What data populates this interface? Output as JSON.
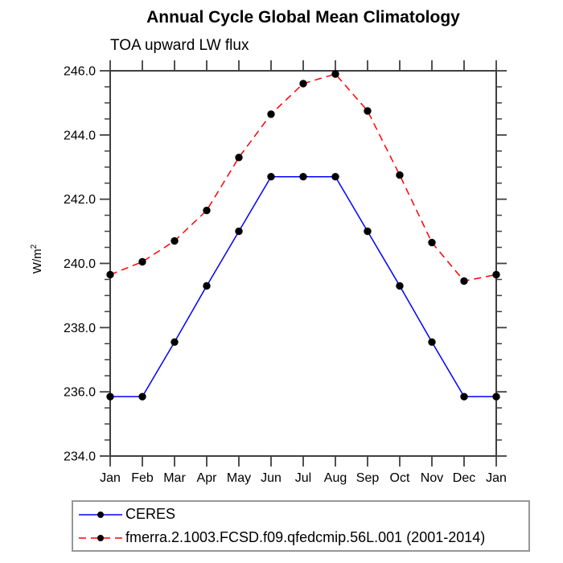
{
  "header": {
    "title": "Annual Cycle Global Mean Climatology",
    "subtitle": "TOA upward LW flux"
  },
  "y_axis": {
    "label_base": "W/m",
    "label_exp": "2"
  },
  "legend": {
    "entries": [
      {
        "label": "CERES",
        "color": "#0000ff",
        "style": "solid",
        "marker_color": "#000000"
      },
      {
        "label": "fmerra.2.1003.FCSD.f09.qfedcmip.56L.001 (2001-2014)",
        "color": "#ff0000",
        "style": "dashed",
        "marker_color": "#000000"
      }
    ]
  },
  "chart_data": {
    "type": "line",
    "title": "Annual Cycle Global Mean Climatology",
    "subtitle": "TOA upward LW flux",
    "ylabel": "W/m²",
    "categories": [
      "Jan",
      "Feb",
      "Mar",
      "Apr",
      "May",
      "Jun",
      "Jul",
      "Aug",
      "Sep",
      "Oct",
      "Nov",
      "Dec",
      "Jan"
    ],
    "series": [
      {
        "name": "CERES",
        "color": "#0000ff",
        "line_style": "solid",
        "marker": "filled-circle",
        "marker_color": "#000000",
        "values": [
          235.85,
          235.85,
          237.55,
          239.3,
          241.0,
          242.7,
          242.7,
          242.7,
          241.0,
          239.3,
          237.55,
          235.85,
          235.85
        ]
      },
      {
        "name": "fmerra.2.1003.FCSD.f09.qfedcmip.56L.001 (2001-2014)",
        "color": "#ff0000",
        "line_style": "dashed",
        "marker": "filled-circle",
        "marker_color": "#000000",
        "values": [
          239.65,
          240.05,
          240.7,
          241.65,
          243.3,
          244.65,
          245.6,
          245.9,
          244.75,
          242.75,
          240.65,
          239.45,
          239.65
        ]
      }
    ],
    "ylim": [
      234.0,
      246.0
    ],
    "ytick_major": [
      234,
      236,
      238,
      240,
      242,
      244,
      246
    ],
    "ytick_labels": [
      "234.0",
      "236.0",
      "238.0",
      "240.0",
      "242.0",
      "244.0",
      "246.0"
    ],
    "ytick_minor_step": 0.5,
    "grid": false,
    "legend_position": "bottom-left-box"
  }
}
